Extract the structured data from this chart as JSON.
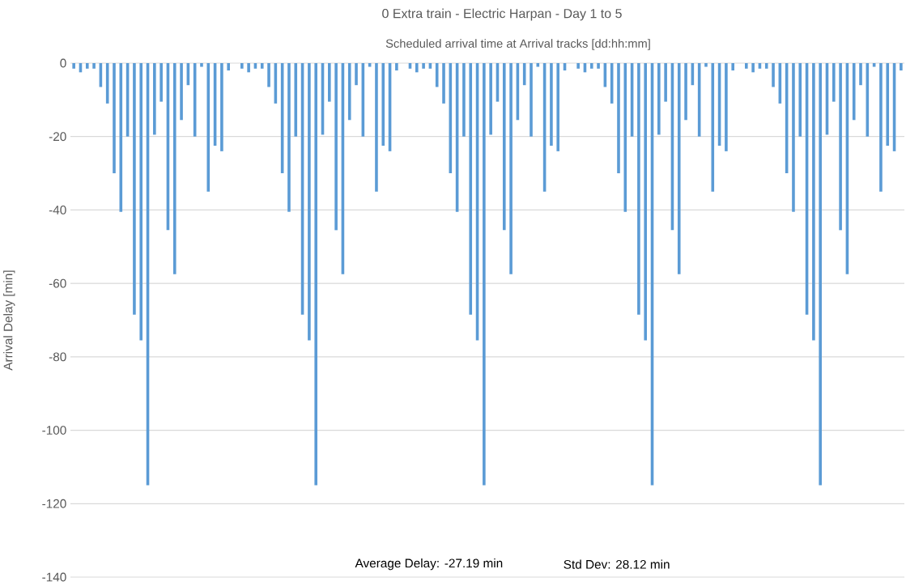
{
  "chart_data": {
    "type": "bar",
    "title": "0 Extra train - Electric Harpan - Day 1 to 5",
    "xlabel": "Scheduled arrival time at Arrival tracks [dd:hh:mm]",
    "ylabel": "Arrival Delay [min]",
    "annotations": [
      "Average Delay: -27.19 min",
      "Std Dev: 28.12 min"
    ],
    "categories": [
      null,
      null,
      null,
      null,
      null,
      null,
      null,
      null,
      null,
      null,
      null,
      null,
      null,
      null,
      null,
      null,
      null,
      null,
      null,
      null,
      null,
      null,
      null,
      null,
      null,
      null,
      null,
      null,
      null,
      null,
      null,
      null,
      null,
      null,
      null,
      null,
      null,
      null,
      null,
      null,
      null,
      null,
      null,
      null,
      null,
      null,
      null,
      null,
      null,
      null,
      null,
      null,
      null,
      null,
      null,
      null,
      null,
      null,
      null,
      null,
      null,
      null,
      null,
      null,
      null,
      null,
      null,
      null,
      null,
      null,
      null,
      null,
      null,
      null,
      null,
      null,
      null,
      null,
      null,
      null,
      null,
      null,
      null,
      null,
      null,
      null,
      null,
      null,
      null,
      null,
      null,
      null,
      null,
      null,
      null,
      null,
      null,
      null,
      null,
      null,
      null,
      null,
      null,
      null,
      null,
      null,
      null,
      null,
      null,
      null,
      null,
      null,
      null,
      null,
      null,
      null,
      null,
      null,
      null,
      null,
      null,
      null,
      null,
      null
    ],
    "values": [
      -1.5,
      -2.5,
      -1.5,
      -1.5,
      -6.5,
      -11,
      -30,
      -40.5,
      -20,
      -68.5,
      -75.5,
      -115,
      -19.5,
      -10.5,
      -45.5,
      -57.5,
      -15.5,
      -6,
      -20,
      -1,
      -35,
      -22.5,
      -24,
      -2,
      0,
      -1.5,
      -2.5,
      -1.5,
      -1.5,
      -6.5,
      -11,
      -30,
      -40.5,
      -20,
      -68.5,
      -75.5,
      -115,
      -19.5,
      -10.5,
      -45.5,
      -57.5,
      -15.5,
      -6,
      -20,
      -1,
      -35,
      -22.5,
      -24,
      -2,
      0,
      -1.5,
      -2.5,
      -1.5,
      -1.5,
      -6.5,
      -11,
      -30,
      -40.5,
      -20,
      -68.5,
      -75.5,
      -115,
      -19.5,
      -10.5,
      -45.5,
      -57.5,
      -15.5,
      -6,
      -20,
      -1,
      -35,
      -22.5,
      -24,
      -2,
      0,
      -1.5,
      -2.5,
      -1.5,
      -1.5,
      -6.5,
      -11,
      -30,
      -40.5,
      -20,
      -68.5,
      -75.5,
      -115,
      -19.5,
      -10.5,
      -45.5,
      -57.5,
      -15.5,
      -6,
      -20,
      -1,
      -35,
      -22.5,
      -24,
      -2,
      0,
      -1.5,
      -2.5,
      -1.5,
      -1.5,
      -6.5,
      -11,
      -30,
      -40.5,
      -20,
      -68.5,
      -75.5,
      -115,
      -19.5,
      -10.5,
      -45.5,
      -57.5,
      -15.5,
      -6,
      -20,
      -1,
      -35,
      -22.5,
      -24,
      -2
    ],
    "color": "#5b9bd5",
    "ylim": [
      -140,
      0
    ],
    "yticks": [
      -140,
      -120,
      -100,
      -80,
      -60,
      -40,
      -20,
      0
    ],
    "grid": "y",
    "tick_labels": "y"
  }
}
